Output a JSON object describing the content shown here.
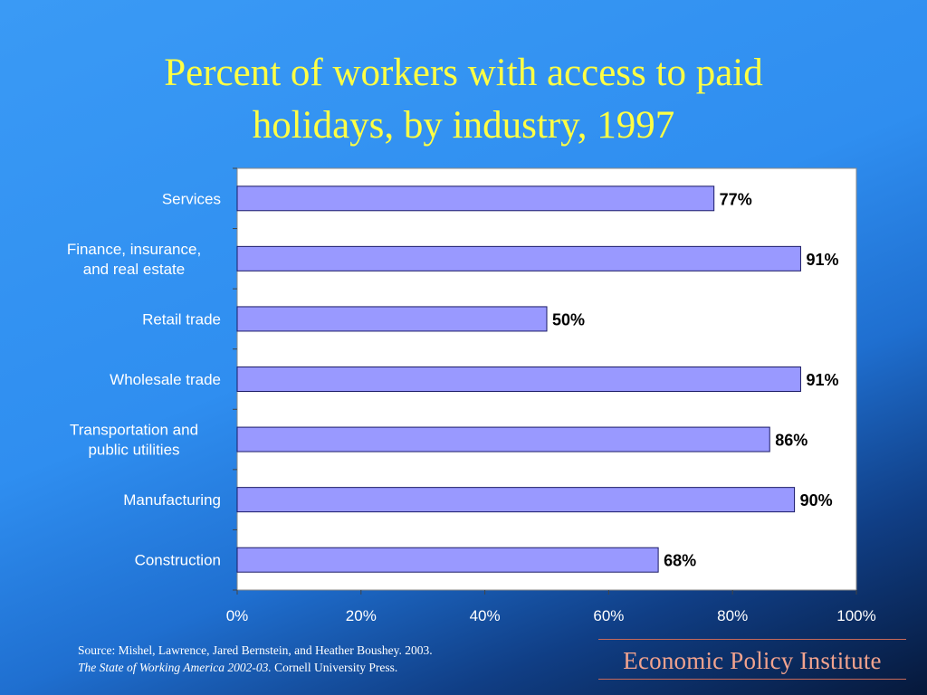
{
  "title": {
    "line1": "Percent of workers with access to paid",
    "line2": "holidays, by industry, 1997"
  },
  "chart_data": {
    "type": "bar",
    "orientation": "horizontal",
    "categories": [
      [
        "Services"
      ],
      [
        "Finance, insurance,",
        "and real estate"
      ],
      [
        "Retail trade"
      ],
      [
        "Wholesale trade"
      ],
      [
        "Transportation and",
        "public utilities"
      ],
      [
        "Manufacturing"
      ],
      [
        "Construction"
      ]
    ],
    "values": [
      77,
      91,
      50,
      91,
      86,
      90,
      68
    ],
    "data_labels": [
      "77%",
      "91%",
      "50%",
      "91%",
      "86%",
      "90%",
      "68%"
    ],
    "x_ticks": [
      "0%",
      "20%",
      "40%",
      "60%",
      "80%",
      "100%"
    ],
    "xlim": [
      0,
      100
    ],
    "grid": false,
    "colors": {
      "bar": "#9999ff",
      "bar_stroke": "#1a1a66",
      "plot_bg": "#ffffff",
      "label_text": "#ffffff",
      "value_text": "#000000"
    }
  },
  "source": {
    "line1": "Source:  Mishel, Lawrence, Jared Bernstein, and Heather Boushey. 2003.",
    "line2_italic": "The State of Working America 2002-03.",
    "line2_rest": " Cornell University Press."
  },
  "brand": "Economic Policy Institute"
}
